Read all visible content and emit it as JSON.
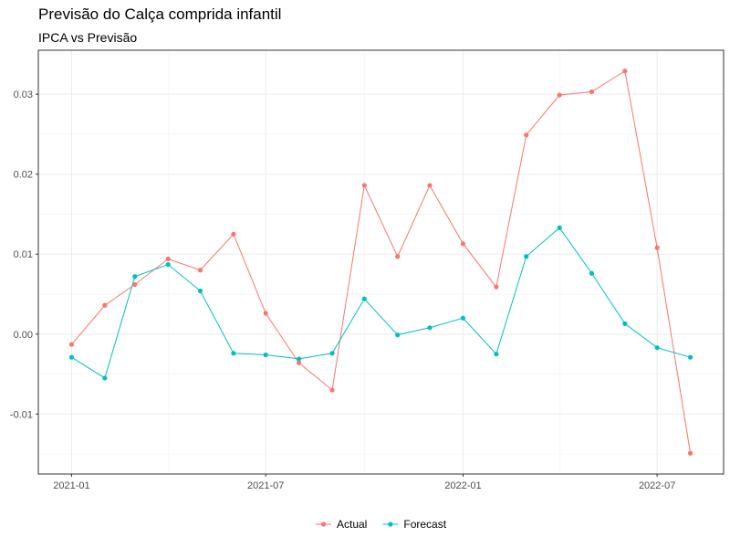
{
  "chart_data": {
    "type": "line",
    "title": "Previsão do Calça comprida infantil",
    "subtitle": "IPCA vs Previsão",
    "xlabel": "",
    "ylabel": "",
    "x": [
      "2021-01-01",
      "2021-02-01",
      "2021-03-01",
      "2021-04-01",
      "2021-05-01",
      "2021-06-01",
      "2021-07-01",
      "2021-08-01",
      "2021-09-01",
      "2021-10-01",
      "2021-11-01",
      "2021-12-01",
      "2022-01-01",
      "2022-02-01",
      "2022-03-01",
      "2022-04-01",
      "2022-05-01",
      "2022-06-01",
      "2022-07-01",
      "2022-08-01"
    ],
    "xlim": [
      "2020-12-01",
      "2022-09-01"
    ],
    "ylim": [
      -0.0175,
      0.0355
    ],
    "x_ticks": [
      {
        "date": "2021-01-01",
        "label": "2021-01"
      },
      {
        "date": "2021-07-01",
        "label": "2021-07"
      },
      {
        "date": "2022-01-01",
        "label": "2022-01"
      },
      {
        "date": "2022-07-01",
        "label": "2022-07"
      }
    ],
    "y_ticks": [
      {
        "value": -0.01,
        "label": "-0.01"
      },
      {
        "value": 0.0,
        "label": "0.00"
      },
      {
        "value": 0.01,
        "label": "0.01"
      },
      {
        "value": 0.02,
        "label": "0.02"
      },
      {
        "value": 0.03,
        "label": "0.03"
      }
    ],
    "grid": true,
    "legend_position": "bottom",
    "series": [
      {
        "name": "Actual",
        "color": "#F8766D",
        "values": [
          -0.0013,
          0.0036,
          0.0062,
          0.0094,
          0.008,
          0.0125,
          0.0026,
          -0.0036,
          -0.007,
          0.0186,
          0.0097,
          0.0186,
          0.0113,
          0.0059,
          0.0249,
          0.0299,
          0.0303,
          0.0329,
          0.0108,
          -0.0149
        ]
      },
      {
        "name": "Forecast",
        "color": "#00BFC4",
        "values": [
          -0.0029,
          -0.0055,
          0.0072,
          0.0087,
          0.0054,
          -0.0024,
          -0.0026,
          -0.0031,
          -0.0024,
          0.0044,
          -0.0001,
          0.0008,
          0.002,
          -0.0025,
          0.0097,
          0.0133,
          0.0076,
          0.0013,
          -0.0017,
          -0.0029
        ]
      }
    ]
  }
}
